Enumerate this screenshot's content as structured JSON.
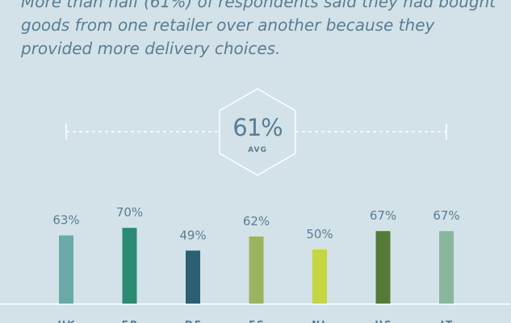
{
  "intro": {
    "line1": "More than half (61%) of respondents said they had bought",
    "line2": "goods from one retailer over another because they",
    "line3": "provided more delivery choices."
  },
  "average": {
    "value": "61%",
    "label": "AVG"
  },
  "colors": {
    "background": "#d3e2e8",
    "text": "#5a7d95",
    "guide": "#ffffff"
  },
  "chart_data": {
    "type": "bar",
    "title": "",
    "xlabel": "",
    "ylabel": "",
    "ylim": [
      0,
      100
    ],
    "grid": false,
    "categories": [
      "UK",
      "FR",
      "DE",
      "ES",
      "NL",
      "US",
      "IT"
    ],
    "values": [
      63,
      70,
      49,
      62,
      50,
      67,
      67
    ],
    "value_labels": [
      "63%",
      "70%",
      "49%",
      "62%",
      "50%",
      "67%",
      "67%"
    ],
    "colors": [
      "#6aa9a9",
      "#2a8a72",
      "#2d5f73",
      "#9cb35f",
      "#c6d640",
      "#567a38",
      "#89b79c"
    ]
  }
}
